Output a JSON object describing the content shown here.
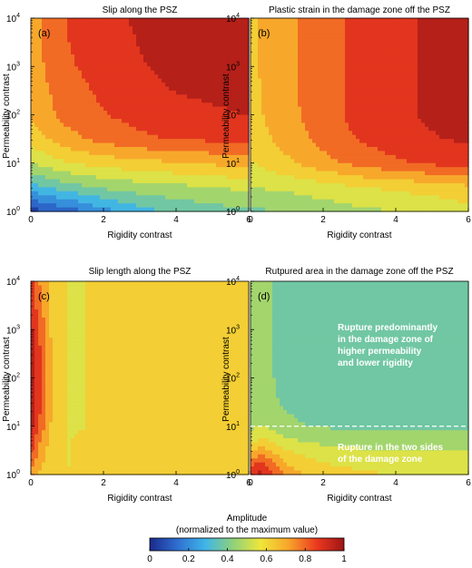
{
  "chart_data": [
    {
      "type": "heatmap",
      "title": "Slip along the PSZ",
      "panel_label": "(a)",
      "xlabel": "Rigidity contrast",
      "ylabel": "Permeability contrast",
      "xlim": [
        0,
        6
      ],
      "ylim_log10": [
        0,
        4
      ],
      "x_ticks": [
        "0",
        "2",
        "4",
        "6"
      ],
      "y_ticks": [
        "10^0",
        "10^1",
        "10^2",
        "10^3",
        "10^4"
      ],
      "value_range": [
        0,
        1
      ],
      "x": [
        0,
        1,
        2,
        3,
        4,
        5,
        6
      ],
      "y_log10": [
        0,
        0.5,
        1,
        1.5,
        2,
        2.5,
        3,
        3.5,
        4
      ],
      "z": [
        [
          0.05,
          0.12,
          0.22,
          0.3,
          0.35,
          0.38,
          0.4
        ],
        [
          0.3,
          0.38,
          0.43,
          0.46,
          0.48,
          0.5,
          0.52
        ],
        [
          0.5,
          0.58,
          0.62,
          0.64,
          0.66,
          0.68,
          0.7
        ],
        [
          0.62,
          0.72,
          0.78,
          0.82,
          0.84,
          0.85,
          0.86
        ],
        [
          0.68,
          0.78,
          0.83,
          0.86,
          0.88,
          0.9,
          0.92
        ],
        [
          0.7,
          0.8,
          0.85,
          0.89,
          0.92,
          0.94,
          0.95
        ],
        [
          0.71,
          0.82,
          0.87,
          0.91,
          0.94,
          0.96,
          0.96
        ],
        [
          0.72,
          0.83,
          0.88,
          0.92,
          0.95,
          0.96,
          0.97
        ],
        [
          0.72,
          0.84,
          0.89,
          0.93,
          0.95,
          0.97,
          0.97
        ]
      ],
      "annotations": [],
      "dashed_line_y_log10": null
    },
    {
      "type": "heatmap",
      "title": "Plastic strain in the damage zone off the PSZ",
      "panel_label": "(b)",
      "xlabel": "Rigidity contrast",
      "ylabel": "Permeability contrast",
      "xlim": [
        0,
        6
      ],
      "ylim_log10": [
        0,
        4
      ],
      "x_ticks": [
        "0",
        "2",
        "4",
        "6"
      ],
      "y_ticks": [
        "10^0",
        "10^1",
        "10^2",
        "10^3",
        "10^4"
      ],
      "value_range": [
        0,
        1
      ],
      "x": [
        0,
        1,
        2,
        3,
        4,
        5,
        6
      ],
      "y_log10": [
        0,
        0.5,
        1,
        1.5,
        2,
        2.5,
        3,
        3.5,
        4
      ],
      "z": [
        [
          0.4,
          0.42,
          0.45,
          0.48,
          0.5,
          0.52,
          0.55
        ],
        [
          0.5,
          0.52,
          0.55,
          0.58,
          0.6,
          0.62,
          0.65
        ],
        [
          0.58,
          0.65,
          0.72,
          0.78,
          0.82,
          0.85,
          0.88
        ],
        [
          0.62,
          0.7,
          0.78,
          0.84,
          0.88,
          0.91,
          0.93
        ],
        [
          0.64,
          0.72,
          0.8,
          0.86,
          0.9,
          0.93,
          0.95
        ],
        [
          0.64,
          0.73,
          0.8,
          0.86,
          0.9,
          0.93,
          0.96
        ],
        [
          0.65,
          0.73,
          0.8,
          0.86,
          0.9,
          0.93,
          0.96
        ],
        [
          0.65,
          0.73,
          0.8,
          0.86,
          0.9,
          0.93,
          0.96
        ],
        [
          0.65,
          0.73,
          0.8,
          0.86,
          0.9,
          0.93,
          0.96
        ]
      ],
      "annotations": [],
      "dashed_line_y_log10": null
    },
    {
      "type": "heatmap",
      "title": "Slip length along the PSZ",
      "panel_label": "(c)",
      "xlabel": "Rigidity contrast",
      "ylabel": "Permeability contrast",
      "xlim": [
        0,
        6
      ],
      "ylim_log10": [
        0,
        4
      ],
      "x_ticks": [
        "0",
        "2",
        "4",
        "6"
      ],
      "y_ticks": [
        "10^0",
        "10^1",
        "10^2",
        "10^3",
        "10^4"
      ],
      "value_range": [
        0,
        1
      ],
      "x": [
        0,
        0.25,
        0.5,
        0.75,
        1,
        1.5,
        2,
        3,
        4,
        5,
        6
      ],
      "y_log10": [
        0,
        0.5,
        1,
        1.5,
        2,
        2.5,
        3,
        3.5,
        4
      ],
      "z": [
        [
          0.7,
          0.66,
          0.62,
          0.6,
          0.58,
          0.62,
          0.66,
          0.66,
          0.66,
          0.66,
          0.66
        ],
        [
          0.86,
          0.72,
          0.64,
          0.6,
          0.58,
          0.6,
          0.66,
          0.66,
          0.66,
          0.66,
          0.66
        ],
        [
          0.95,
          0.82,
          0.68,
          0.6,
          0.58,
          0.58,
          0.66,
          0.66,
          0.66,
          0.66,
          0.66
        ],
        [
          0.97,
          0.85,
          0.7,
          0.6,
          0.58,
          0.58,
          0.66,
          0.66,
          0.66,
          0.66,
          0.66
        ],
        [
          0.97,
          0.85,
          0.7,
          0.6,
          0.58,
          0.58,
          0.66,
          0.66,
          0.66,
          0.66,
          0.66
        ],
        [
          0.96,
          0.84,
          0.69,
          0.6,
          0.58,
          0.58,
          0.66,
          0.66,
          0.66,
          0.66,
          0.66
        ],
        [
          0.94,
          0.82,
          0.68,
          0.6,
          0.58,
          0.58,
          0.66,
          0.66,
          0.66,
          0.66,
          0.66
        ],
        [
          0.9,
          0.78,
          0.66,
          0.6,
          0.58,
          0.58,
          0.66,
          0.66,
          0.66,
          0.66,
          0.66
        ],
        [
          0.86,
          0.74,
          0.66,
          0.6,
          0.58,
          0.58,
          0.66,
          0.66,
          0.66,
          0.66,
          0.66
        ]
      ],
      "annotations": [],
      "dashed_line_y_log10": null
    },
    {
      "type": "heatmap",
      "title": "Rutpured area in the damage zone off the PSZ",
      "panel_label": "(d)",
      "xlabel": "Rigidity contrast",
      "ylabel": "Permeability contrast",
      "xlim": [
        0,
        6
      ],
      "ylim_log10": [
        0,
        4
      ],
      "x_ticks": [
        "0",
        "2",
        "4",
        "6"
      ],
      "y_ticks": [
        "10^0",
        "10^1",
        "10^2",
        "10^3",
        "10^4"
      ],
      "value_range": [
        0,
        1
      ],
      "x": [
        0,
        0.25,
        0.5,
        0.75,
        1,
        1.5,
        2,
        3,
        4,
        5,
        6
      ],
      "y_log10": [
        0,
        0.25,
        0.5,
        0.75,
        1,
        1.5,
        2,
        2.5,
        3,
        3.5,
        4
      ],
      "z": [
        [
          0.9,
          0.95,
          0.9,
          0.8,
          0.72,
          0.66,
          0.62,
          0.6,
          0.58,
          0.58,
          0.57
        ],
        [
          0.78,
          0.84,
          0.8,
          0.72,
          0.66,
          0.62,
          0.58,
          0.56,
          0.55,
          0.55,
          0.54
        ],
        [
          0.64,
          0.7,
          0.68,
          0.62,
          0.58,
          0.55,
          0.53,
          0.51,
          0.5,
          0.5,
          0.5
        ],
        [
          0.54,
          0.58,
          0.56,
          0.52,
          0.5,
          0.48,
          0.46,
          0.45,
          0.45,
          0.45,
          0.45
        ],
        [
          0.48,
          0.5,
          0.49,
          0.46,
          0.44,
          0.42,
          0.41,
          0.4,
          0.4,
          0.4,
          0.4
        ],
        [
          0.45,
          0.46,
          0.45,
          0.42,
          0.4,
          0.38,
          0.37,
          0.37,
          0.37,
          0.37,
          0.37
        ],
        [
          0.44,
          0.45,
          0.44,
          0.4,
          0.38,
          0.37,
          0.37,
          0.37,
          0.37,
          0.37,
          0.37
        ],
        [
          0.44,
          0.45,
          0.44,
          0.4,
          0.37,
          0.36,
          0.36,
          0.36,
          0.36,
          0.36,
          0.36
        ],
        [
          0.44,
          0.45,
          0.44,
          0.4,
          0.37,
          0.36,
          0.36,
          0.36,
          0.36,
          0.36,
          0.36
        ],
        [
          0.44,
          0.45,
          0.44,
          0.4,
          0.37,
          0.36,
          0.36,
          0.36,
          0.36,
          0.36,
          0.36
        ],
        [
          0.44,
          0.45,
          0.44,
          0.4,
          0.37,
          0.36,
          0.36,
          0.36,
          0.36,
          0.36,
          0.36
        ]
      ],
      "annotations": [
        [
          "Rupture predominantly",
          "in the damage zone of",
          "higher permeability",
          "and lower rigidity"
        ],
        [
          "Rupture in the two sides",
          "of the damage zone"
        ]
      ],
      "dashed_line_y_log10": 1
    }
  ],
  "colorbar": {
    "title_line1": "Amplitude",
    "title_line2": "(normalized to the maximum value)",
    "ticks": [
      "0",
      "0.2",
      "0.4",
      "0.6",
      "0.8",
      "1"
    ],
    "range": [
      0,
      1
    ],
    "colormap": [
      "#1a2a8c",
      "#2f6fd0",
      "#3fb5e8",
      "#8fd17a",
      "#f0e63a",
      "#f7a52a",
      "#ec3a1f",
      "#9e1516"
    ]
  }
}
